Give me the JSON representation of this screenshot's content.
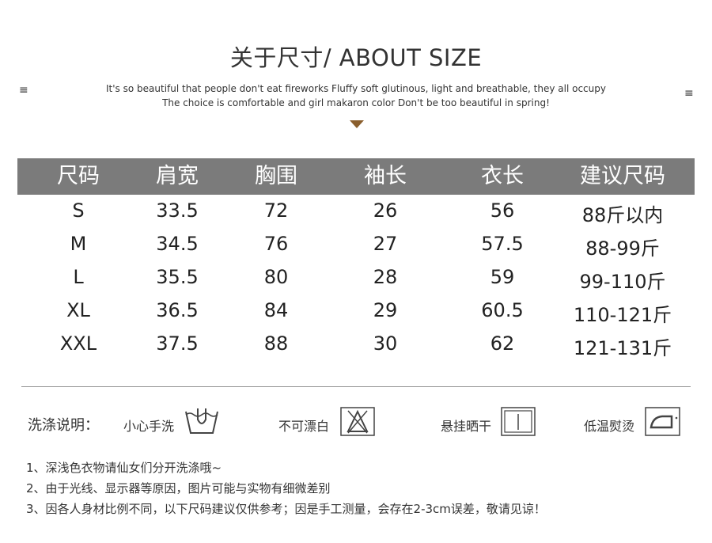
{
  "header": {
    "title": "关于尺寸/ ABOUT SIZE",
    "subtitle_line1": "It's so beautiful that people don't eat fireworks Fluffy soft glutinous, light and breathable, they all occupy",
    "subtitle_line2": "The choice is comfortable and girl makaron color Don't be too beautiful in spring!",
    "left_icon": "≡",
    "right_icon": "≡",
    "accent": "#8a5e2c"
  },
  "table": {
    "header_bg": "#7b7b7b",
    "columns": [
      "尺码",
      "肩宽",
      "胸围",
      "袖长",
      "衣长",
      "建议尺码"
    ],
    "rows": [
      [
        "S",
        "33.5",
        "72",
        "26",
        "56",
        "88斤以内"
      ],
      [
        "M",
        "34.5",
        "76",
        "27",
        "57.5",
        "88-99斤"
      ],
      [
        "L",
        "35.5",
        "80",
        "28",
        "59",
        "99-110斤"
      ],
      [
        "XL",
        "36.5",
        "84",
        "29",
        "60.5",
        "110-121斤"
      ],
      [
        "XXL",
        "37.5",
        "88",
        "30",
        "62",
        "121-131斤"
      ]
    ]
  },
  "care": {
    "label": "洗涤说明：",
    "items": [
      {
        "text": "小心手洗",
        "icon": "hand-wash-icon"
      },
      {
        "text": "不可漂白",
        "icon": "no-bleach-icon"
      },
      {
        "text": "悬挂晒干",
        "icon": "line-dry-icon"
      },
      {
        "text": "低温熨烫",
        "icon": "low-iron-icon"
      }
    ]
  },
  "notes": [
    "1、深浅色衣物请仙女们分开洗涤哦~",
    "2、由于光线、显示器等原因，图片可能与实物有细微差别",
    "3、因各人身材比例不同，以下尺码建议仅供参考；因是手工测量，会存在2-3cm误差，敬请见谅！"
  ]
}
